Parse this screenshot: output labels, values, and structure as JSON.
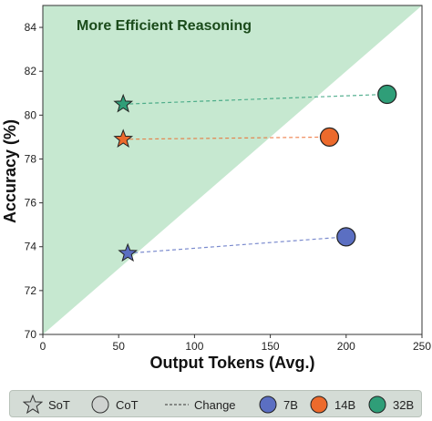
{
  "chart_data": {
    "type": "scatter",
    "annotation": "More Efficient Reasoning",
    "xlabel": "Output Tokens (Avg.)",
    "ylabel": "Accuracy (%)",
    "xlim": [
      0,
      250
    ],
    "ylim": [
      70,
      85
    ],
    "xticks": [
      "0",
      "50",
      "100",
      "150",
      "200",
      "250"
    ],
    "yticks": [
      "70",
      "72",
      "74",
      "76",
      "78",
      "80",
      "82",
      "84"
    ],
    "grid": false,
    "legend_position": "bottom",
    "shaded_region": "above diagonal y = 70 + 0.06x",
    "series": [
      {
        "name": "7B",
        "color": "#5b6fc2",
        "sot": {
          "x": 56,
          "y": 73.7
        },
        "cot": {
          "x": 200,
          "y": 74.45
        }
      },
      {
        "name": "14B",
        "color": "#ec6a2c",
        "sot": {
          "x": 53,
          "y": 78.9
        },
        "cot": {
          "x": 189,
          "y": 79.0
        }
      },
      {
        "name": "32B",
        "color": "#2f9e78",
        "sot": {
          "x": 53,
          "y": 80.5
        },
        "cot": {
          "x": 227,
          "y": 80.95
        }
      }
    ]
  },
  "legend": {
    "sot_label": "SoT",
    "cot_label": "CoT",
    "change_label": "Change",
    "size_7b": "7B",
    "size_14b": "14B",
    "size_32b": "32B"
  },
  "colors": {
    "region_fill": "#c6e8d0",
    "cot_marker_gray": "#cfd2d0"
  }
}
